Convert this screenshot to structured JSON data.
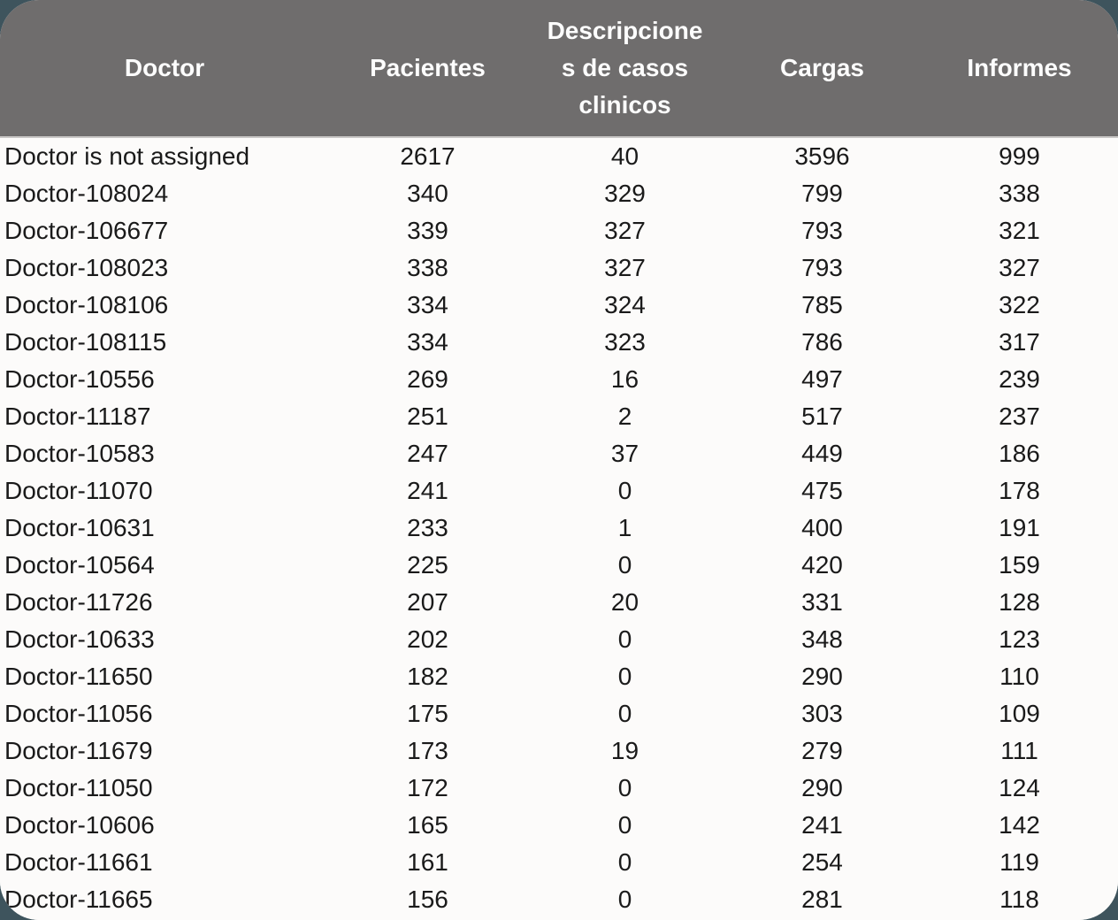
{
  "chart_data": {
    "type": "table",
    "title": "",
    "columns": [
      "Doctor",
      "Pacientes",
      "Descripciones de casos clinicos",
      "Cargas",
      "Informes"
    ],
    "rows": [
      [
        "Doctor is not assigned",
        "2617",
        "40",
        "3596",
        "999"
      ],
      [
        "Doctor-108024",
        "340",
        "329",
        "799",
        "338"
      ],
      [
        "Doctor-106677",
        "339",
        "327",
        "793",
        "321"
      ],
      [
        "Doctor-108023",
        "338",
        "327",
        "793",
        "327"
      ],
      [
        "Doctor-108106",
        "334",
        "324",
        "785",
        "322"
      ],
      [
        "Doctor-108115",
        "334",
        "323",
        "786",
        "317"
      ],
      [
        "Doctor-10556",
        "269",
        "16",
        "497",
        "239"
      ],
      [
        "Doctor-11187",
        "251",
        "2",
        "517",
        "237"
      ],
      [
        "Doctor-10583",
        "247",
        "37",
        "449",
        "186"
      ],
      [
        "Doctor-11070",
        "241",
        "0",
        "475",
        "178"
      ],
      [
        "Doctor-10631",
        "233",
        "1",
        "400",
        "191"
      ],
      [
        "Doctor-10564",
        "225",
        "0",
        "420",
        "159"
      ],
      [
        "Doctor-11726",
        "207",
        "20",
        "331",
        "128"
      ],
      [
        "Doctor-10633",
        "202",
        "0",
        "348",
        "123"
      ],
      [
        "Doctor-11650",
        "182",
        "0",
        "290",
        "110"
      ],
      [
        "Doctor-11056",
        "175",
        "0",
        "303",
        "109"
      ],
      [
        "Doctor-11679",
        "173",
        "19",
        "279",
        "111"
      ],
      [
        "Doctor-11050",
        "172",
        "0",
        "290",
        "124"
      ],
      [
        "Doctor-10606",
        "165",
        "0",
        "241",
        "142"
      ],
      [
        "Doctor-11661",
        "161",
        "0",
        "254",
        "119"
      ],
      [
        "Doctor-11665",
        "156",
        "0",
        "281",
        "118"
      ]
    ],
    "layout": {
      "legend": "none",
      "grid": "off",
      "header_position": "top",
      "first_column_align": "left",
      "value_columns_align": "center"
    },
    "colors": {
      "header_bg": "#6f6d6d",
      "header_text": "#fdfdfd",
      "body_bg": "#fcfbfa",
      "body_text": "#1a1a1a",
      "page_bg": "#3e545d"
    }
  }
}
